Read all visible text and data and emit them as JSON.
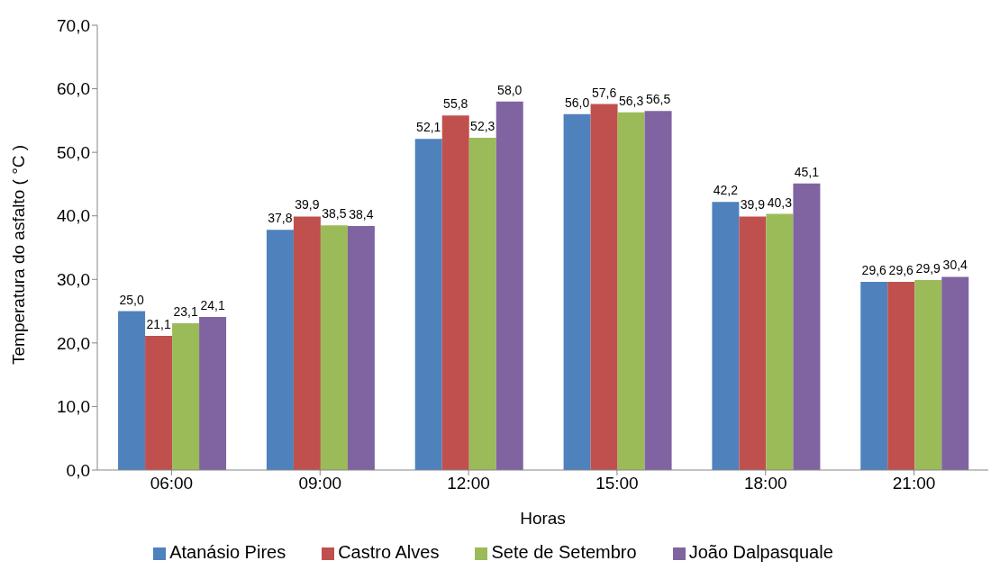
{
  "chart_data": {
    "type": "bar",
    "xlabel": "Horas",
    "ylabel": "Temperatura do asfalto ( °C )",
    "categories": [
      "06:00",
      "09:00",
      "12:00",
      "15:00",
      "18:00",
      "21:00"
    ],
    "series": [
      {
        "name": "Atanásio Pires",
        "color": "#4f81bd",
        "values": [
          25.0,
          37.8,
          52.1,
          56.0,
          42.2,
          29.6
        ],
        "value_labels": [
          "25,0",
          "37,8",
          "52,1",
          "56,0",
          "42,2",
          "29,6"
        ]
      },
      {
        "name": "Castro Alves",
        "color": "#c0504d",
        "values": [
          21.1,
          39.9,
          55.8,
          57.6,
          39.9,
          29.6
        ],
        "value_labels": [
          "21,1",
          "39,9",
          "55,8",
          "57,6",
          "39,9",
          "29,6"
        ]
      },
      {
        "name": "Sete de Setembro",
        "color": "#9bbb59",
        "values": [
          23.1,
          38.5,
          52.3,
          56.3,
          40.3,
          29.9
        ],
        "value_labels": [
          "23,1",
          "38,5",
          "52,3",
          "56,3",
          "40,3",
          "29,9"
        ]
      },
      {
        "name": "João Dalpasquale",
        "color": "#8064a2",
        "values": [
          24.1,
          38.4,
          58.0,
          56.5,
          45.1,
          30.4
        ],
        "value_labels": [
          "24,1",
          "38,4",
          "58,0",
          "56,5",
          "45,1",
          "30,4"
        ]
      }
    ],
    "ylim": [
      0,
      70
    ],
    "yticks": [
      {
        "value": 0,
        "label": "0,0"
      },
      {
        "value": 10,
        "label": "10,0"
      },
      {
        "value": 20,
        "label": "20,0"
      },
      {
        "value": 30,
        "label": "30,0"
      },
      {
        "value": 40,
        "label": "40,0"
      },
      {
        "value": 50,
        "label": "50,0"
      },
      {
        "value": 60,
        "label": "60,0"
      },
      {
        "value": 70,
        "label": "70,0"
      }
    ],
    "grid": false,
    "legend": "bottom"
  }
}
